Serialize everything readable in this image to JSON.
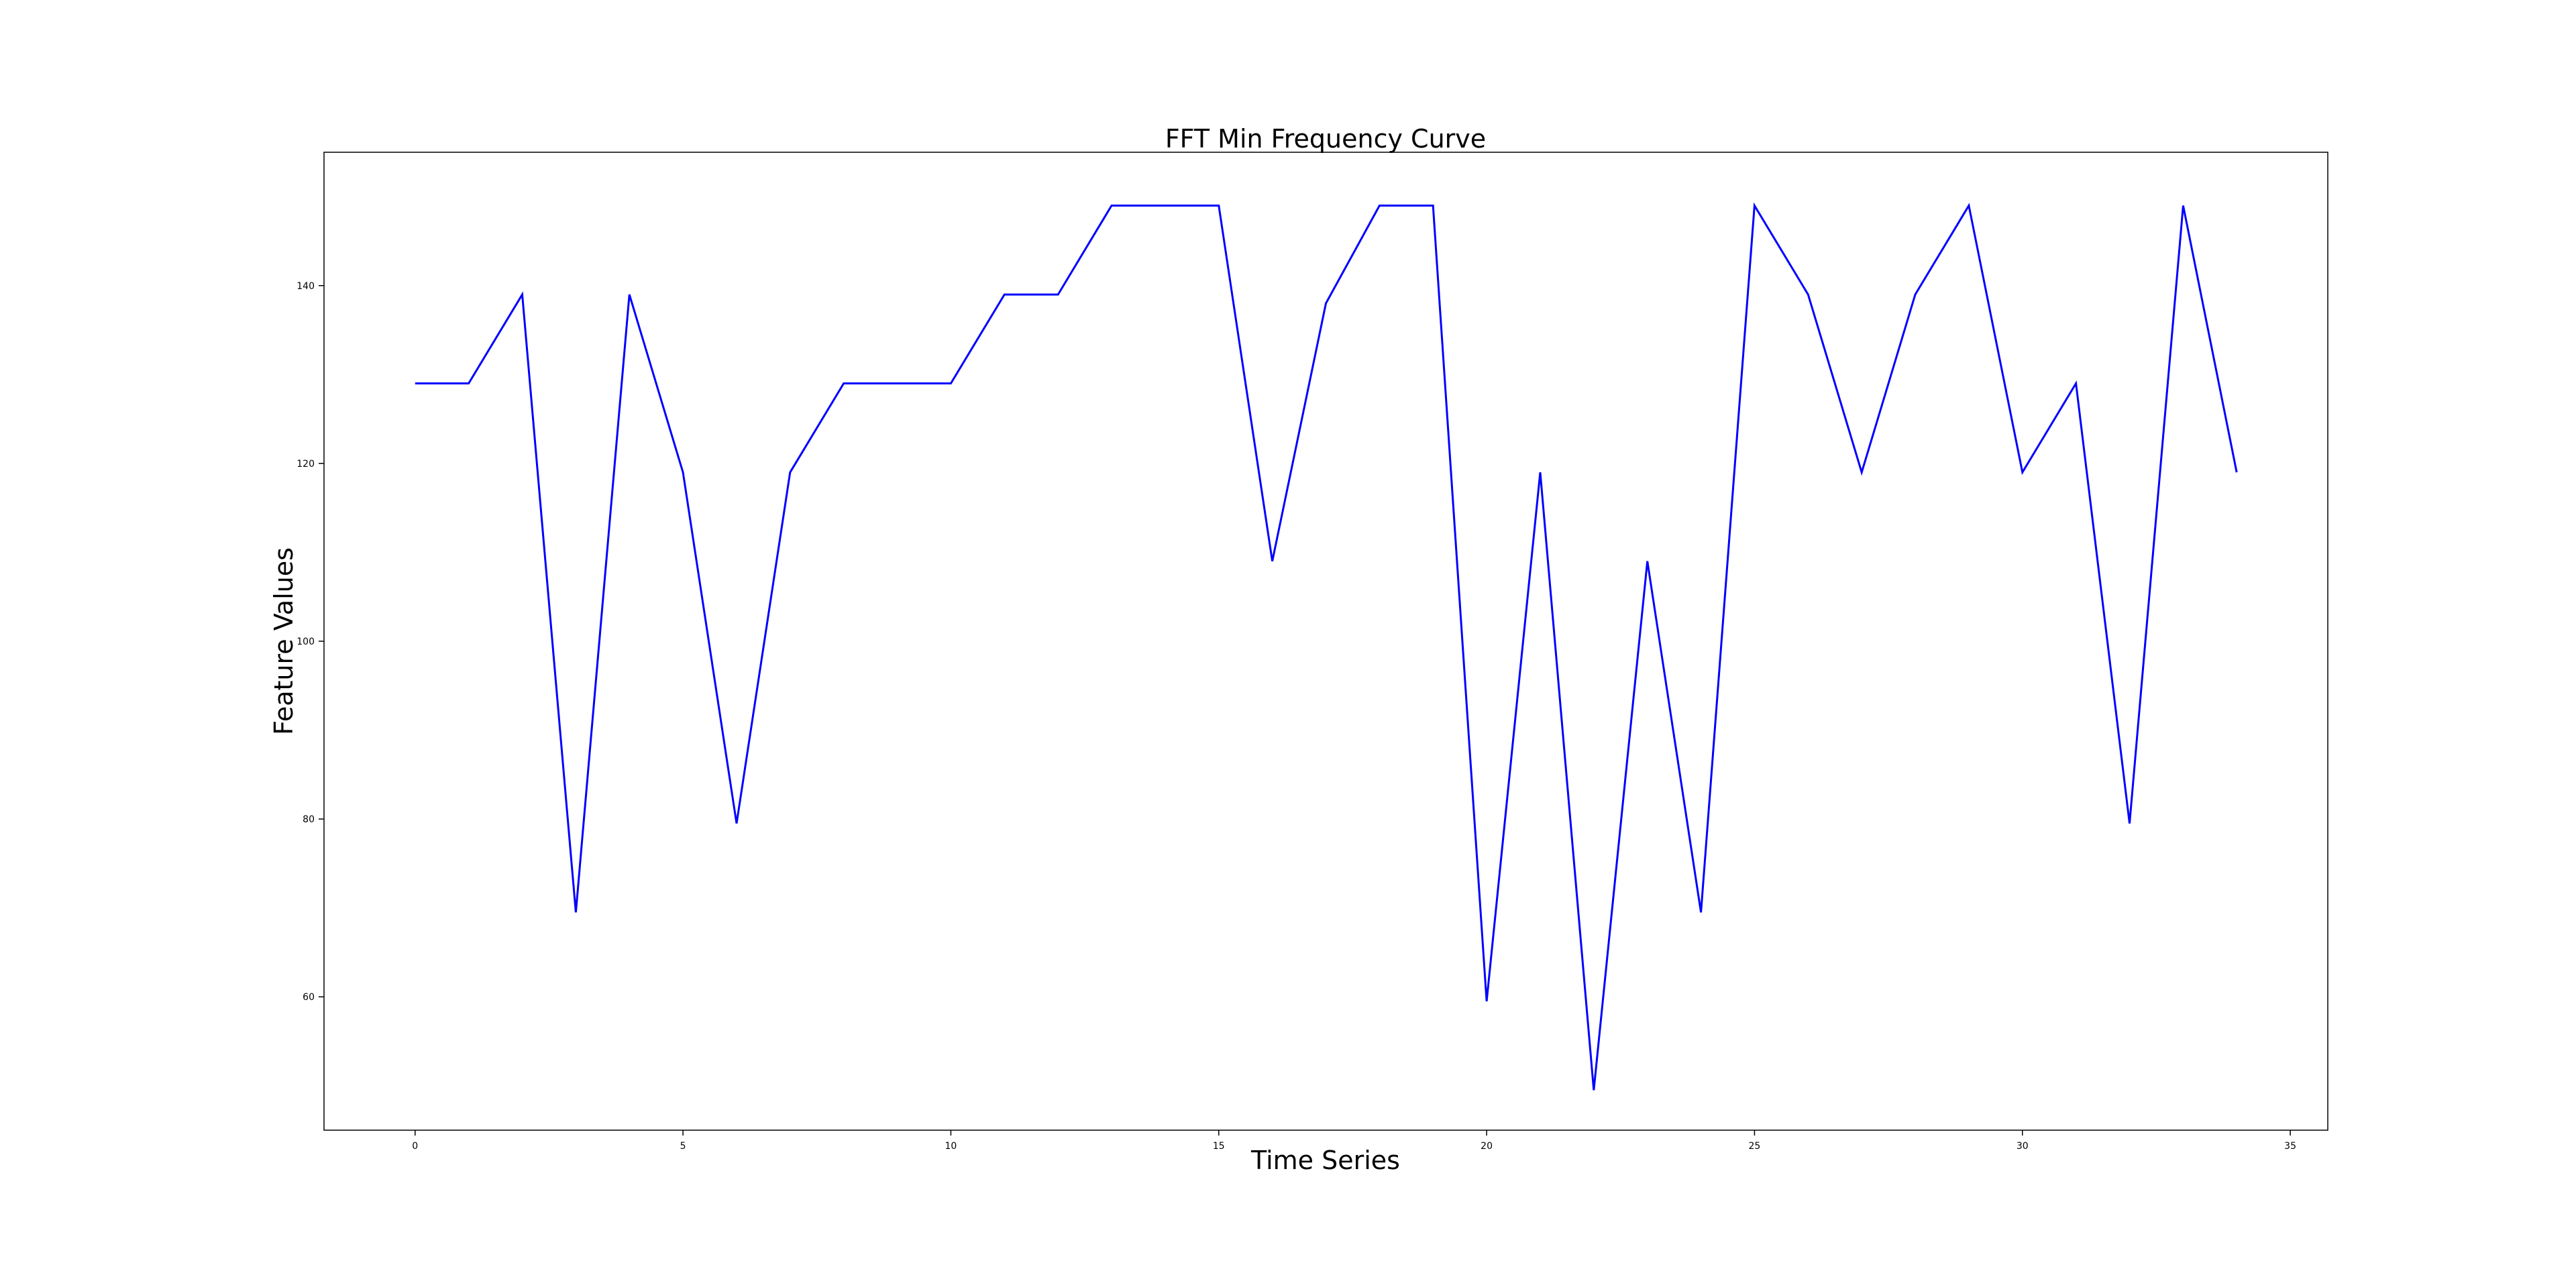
{
  "chart_data": {
    "type": "line",
    "title": "FFT Min Frequency Curve",
    "xlabel": "Time Series",
    "ylabel": "Feature Values",
    "xlim": [
      -1.7,
      35.7
    ],
    "ylim": [
      45,
      155
    ],
    "xticks": [
      0,
      5,
      10,
      15,
      20,
      25,
      30,
      35
    ],
    "yticks": [
      60,
      80,
      100,
      120,
      140
    ],
    "grid": false,
    "series": [
      {
        "color": "#0000ff",
        "x": [
          0,
          1,
          2,
          3,
          4,
          5,
          6,
          7,
          8,
          9,
          10,
          11,
          12,
          13,
          14,
          15,
          16,
          17,
          18,
          19,
          20,
          21,
          22,
          23,
          24,
          25,
          26,
          27,
          28,
          29,
          30,
          31,
          32,
          33,
          34
        ],
        "values": [
          129,
          129,
          139,
          69.5,
          139,
          119,
          79.5,
          119,
          129,
          129,
          129,
          139,
          139,
          149,
          149,
          149,
          109,
          138,
          149,
          149,
          59.5,
          119,
          49.5,
          109,
          69.5,
          149,
          139,
          119,
          139,
          149,
          119,
          129,
          79.5,
          149,
          119
        ]
      }
    ]
  }
}
